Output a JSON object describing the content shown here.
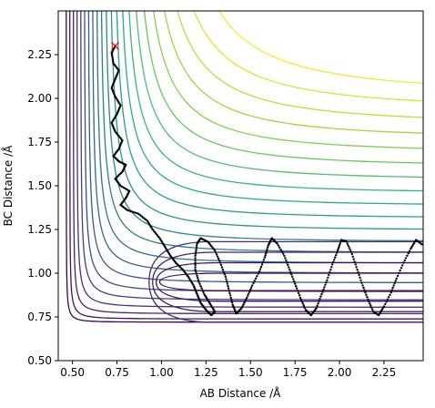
{
  "chart_data": {
    "type": "contour",
    "title": "",
    "xlabel": "AB Distance /Å",
    "ylabel": "BC Distance /Å",
    "xlim": [
      0.42,
      2.47
    ],
    "ylim": [
      0.5,
      2.5
    ],
    "xticks": [
      0.5,
      0.75,
      1.0,
      1.25,
      1.5,
      1.75,
      2.0,
      2.25
    ],
    "yticks": [
      0.5,
      0.75,
      1.0,
      1.25,
      1.5,
      1.75,
      2.0,
      2.25
    ],
    "xtick_labels": [
      "0.50",
      "0.75",
      "1.00",
      "1.25",
      "1.50",
      "1.75",
      "2.00",
      "2.25"
    ],
    "ytick_labels": [
      "0.50",
      "0.75",
      "1.00",
      "1.25",
      "1.50",
      "1.75",
      "2.00",
      "2.25"
    ],
    "colormap": [
      "#440154",
      "#472c7a",
      "#3b518b",
      "#2c718e",
      "#21908d",
      "#27ad81",
      "#5cc863",
      "#aadc32",
      "#fde725"
    ],
    "grid": false,
    "start_marker": {
      "x": 0.74,
      "y": 2.3,
      "symbol": "x",
      "color": "#ff0000"
    },
    "trajectory_color": "#000000",
    "trajectory": [
      [
        0.74,
        2.3
      ],
      [
        0.72,
        2.26
      ],
      [
        0.73,
        2.2
      ],
      [
        0.76,
        2.16
      ],
      [
        0.74,
        2.11
      ],
      [
        0.72,
        2.06
      ],
      [
        0.74,
        2.01
      ],
      [
        0.77,
        1.96
      ],
      [
        0.75,
        1.91
      ],
      [
        0.72,
        1.86
      ],
      [
        0.74,
        1.81
      ],
      [
        0.78,
        1.76
      ],
      [
        0.76,
        1.71
      ],
      [
        0.73,
        1.67
      ],
      [
        0.76,
        1.64
      ],
      [
        0.8,
        1.62
      ],
      [
        0.78,
        1.58
      ],
      [
        0.74,
        1.54
      ],
      [
        0.77,
        1.5
      ],
      [
        0.82,
        1.47
      ],
      [
        0.8,
        1.43
      ],
      [
        0.77,
        1.39
      ],
      [
        0.81,
        1.36
      ],
      [
        0.87,
        1.34
      ],
      [
        0.92,
        1.3
      ],
      [
        0.95,
        1.25
      ],
      [
        0.99,
        1.2
      ],
      [
        1.02,
        1.15
      ],
      [
        1.05,
        1.1
      ],
      [
        1.08,
        1.06
      ],
      [
        1.12,
        1.02
      ],
      [
        1.15,
        0.98
      ],
      [
        1.18,
        0.93
      ],
      [
        1.2,
        0.88
      ],
      [
        1.22,
        0.83
      ],
      [
        1.25,
        0.79
      ],
      [
        1.28,
        0.76
      ],
      [
        1.3,
        0.78
      ],
      [
        1.27,
        0.83
      ],
      [
        1.24,
        0.88
      ],
      [
        1.21,
        0.95
      ],
      [
        1.19,
        1.02
      ],
      [
        1.19,
        1.1
      ],
      [
        1.2,
        1.17
      ],
      [
        1.22,
        1.2
      ],
      [
        1.26,
        1.18
      ],
      [
        1.3,
        1.13
      ],
      [
        1.33,
        1.06
      ],
      [
        1.36,
        0.98
      ],
      [
        1.38,
        0.9
      ],
      [
        1.4,
        0.82
      ],
      [
        1.42,
        0.77
      ],
      [
        1.45,
        0.8
      ],
      [
        1.48,
        0.86
      ],
      [
        1.51,
        0.93
      ],
      [
        1.55,
        1.01
      ],
      [
        1.58,
        1.09
      ],
      [
        1.6,
        1.16
      ],
      [
        1.62,
        1.2
      ],
      [
        1.65,
        1.17
      ],
      [
        1.69,
        1.1
      ],
      [
        1.72,
        1.02
      ],
      [
        1.75,
        0.94
      ],
      [
        1.78,
        0.86
      ],
      [
        1.81,
        0.79
      ],
      [
        1.84,
        0.76
      ],
      [
        1.87,
        0.8
      ],
      [
        1.9,
        0.88
      ],
      [
        1.93,
        0.96
      ],
      [
        1.96,
        1.05
      ],
      [
        1.99,
        1.13
      ],
      [
        2.01,
        1.19
      ],
      [
        2.04,
        1.18
      ],
      [
        2.07,
        1.11
      ],
      [
        2.1,
        1.02
      ],
      [
        2.13,
        0.93
      ],
      [
        2.16,
        0.85
      ],
      [
        2.19,
        0.78
      ],
      [
        2.22,
        0.76
      ],
      [
        2.25,
        0.81
      ],
      [
        2.29,
        0.89
      ],
      [
        2.32,
        0.97
      ],
      [
        2.36,
        1.06
      ],
      [
        2.4,
        1.14
      ],
      [
        2.43,
        1.19
      ],
      [
        2.47,
        1.16
      ]
    ]
  }
}
